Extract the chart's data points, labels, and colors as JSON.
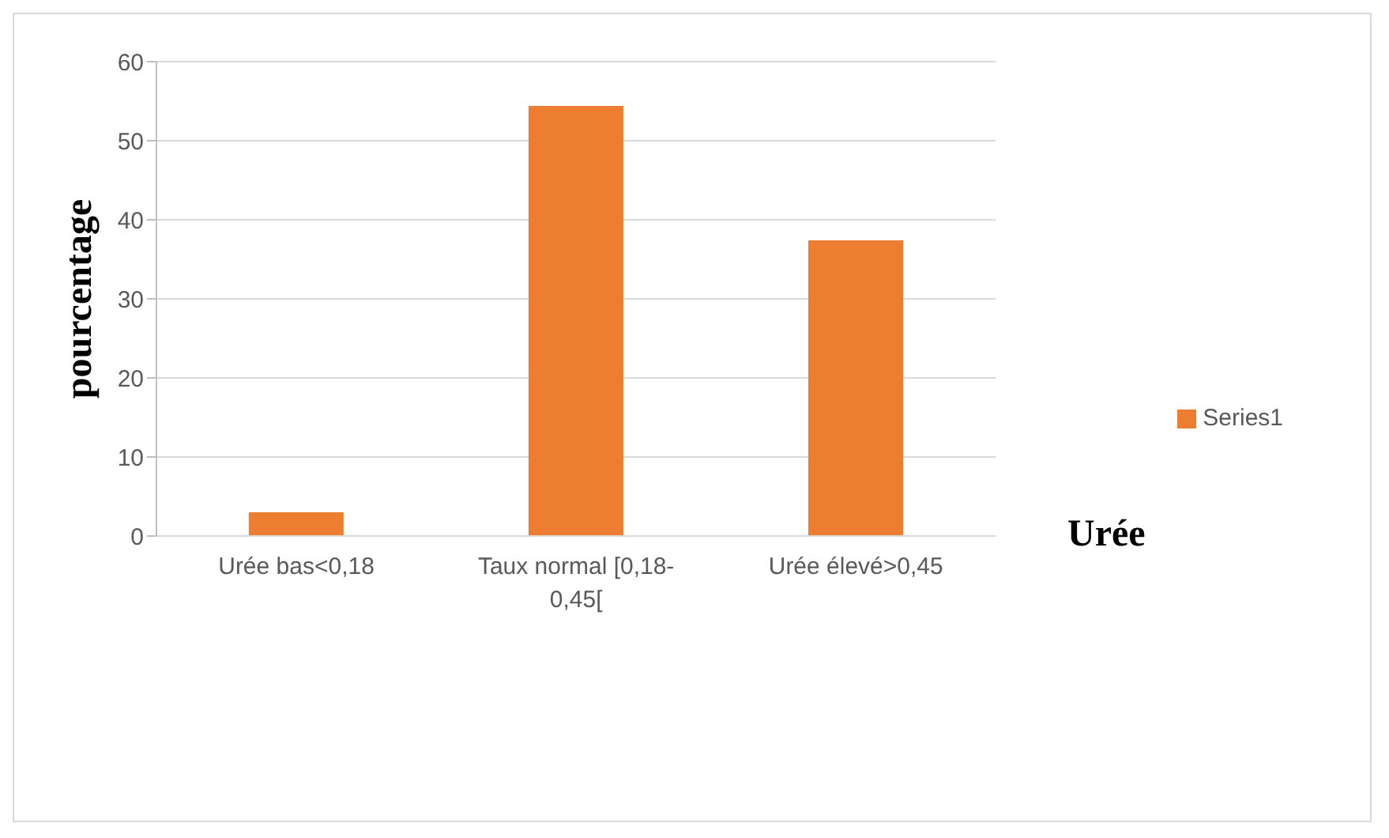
{
  "chart_data": {
    "type": "bar",
    "xlabel": "Urée",
    "ylabel": "pourcentage",
    "categories": [
      "Urée bas<0,18",
      "Taux normal [0,18-0,45[",
      "Urée élevé>0,45"
    ],
    "series": [
      {
        "name": "Series1",
        "color": "#ed7d31",
        "values": [
          3,
          54.4,
          37.4
        ]
      }
    ],
    "ylim": [
      0,
      60
    ],
    "yticks": [
      0,
      10,
      20,
      30,
      40,
      50,
      60
    ],
    "grid": "y",
    "legend": "right"
  }
}
